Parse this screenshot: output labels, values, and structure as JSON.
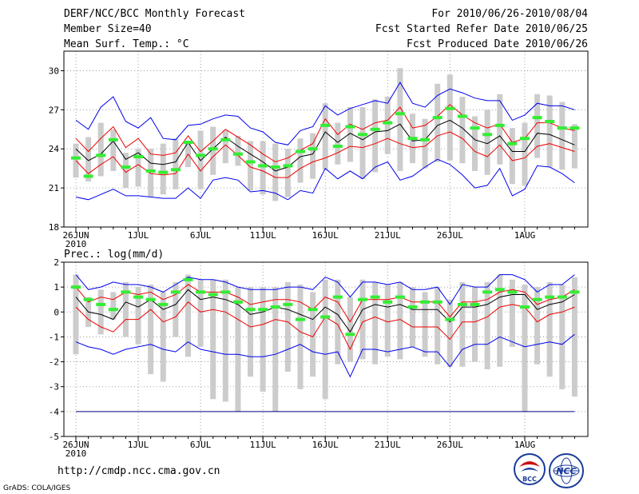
{
  "header": {
    "title": "DERF/NCC/BCC Monthly Forecast",
    "member": "Member Size=40",
    "variable": "Mean Surf. Temp.: °C",
    "period": "For 2010/06/26-2010/08/04",
    "start": "Fcst Started Refer Date 2010/06/25",
    "produced": "Fcst Produced Date 2010/06/26"
  },
  "footer": {
    "url": "http://cmdp.ncc.cma.gov.cn",
    "credit": "GrADS: COLA/IGES",
    "logo_left": "BCC",
    "logo_right": "NCC"
  },
  "chart_data": [
    {
      "type": "line",
      "title": "Mean Surf. Temp.: °C",
      "xlabel": "",
      "ylabel": "",
      "ylim": [
        18,
        31.5
      ],
      "yticks": [
        18,
        21,
        24,
        27,
        30
      ],
      "xticks": [
        {
          "day": 0,
          "label": "26JUN",
          "sub": "2010"
        },
        {
          "day": 5,
          "label": "1JUL"
        },
        {
          "day": 10,
          "label": "6JUL"
        },
        {
          "day": 15,
          "label": "11JUL"
        },
        {
          "day": 20,
          "label": "16JUL"
        },
        {
          "day": 25,
          "label": "21JUL"
        },
        {
          "day": 30,
          "label": "26JUL"
        },
        {
          "day": 36,
          "label": "1AUG"
        }
      ],
      "max": [
        26.2,
        25.5,
        27.2,
        28.0,
        26.1,
        25.6,
        26.4,
        24.8,
        24.7,
        25.8,
        25.9,
        26.3,
        26.6,
        26.5,
        25.6,
        25.3,
        24.5,
        24.3,
        25.4,
        25.7,
        27.3,
        26.6,
        27.1,
        27.4,
        27.7,
        27.5,
        29.1,
        27.5,
        27.2,
        28.1,
        28.6,
        28.3,
        27.9,
        27.7,
        27.7,
        26.2,
        26.6,
        27.5,
        27.3,
        27.3,
        27.0
      ],
      "upper": [
        24.8,
        23.8,
        24.8,
        25.7,
        24.1,
        24.8,
        23.6,
        23.5,
        23.7,
        25.0,
        23.8,
        24.6,
        25.5,
        24.9,
        24.3,
        23.6,
        23.0,
        23.3,
        23.9,
        24.4,
        26.3,
        25.1,
        25.9,
        25.5,
        26.0,
        26.2,
        27.2,
        25.6,
        25.8,
        26.5,
        27.4,
        26.6,
        26.0,
        25.6,
        25.9,
        24.5,
        24.8,
        26.0,
        26.0,
        25.6,
        25.4
      ],
      "mean": [
        24.0,
        23.1,
        23.6,
        24.6,
        23.2,
        23.7,
        22.9,
        22.8,
        23.0,
        24.5,
        23.1,
        24.0,
        24.9,
        24.2,
        23.6,
        23.0,
        22.3,
        22.6,
        23.4,
        23.6,
        25.3,
        24.5,
        25.2,
        24.7,
        25.3,
        25.4,
        25.9,
        24.6,
        24.7,
        25.8,
        26.2,
        25.6,
        24.7,
        24.4,
        25.0,
        23.8,
        23.8,
        25.2,
        25.1,
        24.7,
        24.3
      ],
      "lower": [
        23.1,
        22.1,
        22.8,
        23.4,
        22.2,
        22.8,
        22.1,
        22.0,
        22.1,
        23.6,
        22.3,
        23.4,
        24.3,
        23.5,
        22.6,
        22.3,
        21.8,
        21.8,
        22.5,
        23.0,
        23.3,
        23.7,
        24.2,
        24.1,
        24.4,
        24.8,
        24.4,
        24.1,
        24.2,
        25.0,
        25.3,
        24.8,
        23.8,
        23.4,
        24.3,
        23.1,
        23.3,
        24.2,
        24.4,
        24.1,
        23.8
      ],
      "min": [
        20.3,
        20.1,
        20.5,
        20.9,
        20.4,
        20.4,
        20.3,
        20.2,
        20.2,
        21.0,
        20.2,
        21.6,
        21.8,
        21.6,
        20.7,
        20.8,
        20.6,
        20.1,
        20.8,
        20.6,
        22.5,
        21.7,
        22.3,
        21.7,
        22.6,
        23.0,
        21.6,
        21.9,
        22.6,
        23.2,
        22.8,
        22.0,
        21.0,
        21.2,
        22.5,
        20.4,
        20.9,
        22.7,
        22.6,
        22.1,
        21.4
      ],
      "obs": [
        23.3,
        21.9,
        23.5,
        24.7,
        22.6,
        23.4,
        22.3,
        22.2,
        22.4,
        24.5,
        23.5,
        24.0,
        24.7,
        23.6,
        23.0,
        22.7,
        22.6,
        22.7,
        23.8,
        24.0,
        25.8,
        24.2,
        25.7,
        25.1,
        25.5,
        26.0,
        26.7,
        24.8,
        24.7,
        26.4,
        27.1,
        26.5,
        25.6,
        25.1,
        25.8,
        24.4,
        24.8,
        26.4,
        26.1,
        25.6,
        25.6
      ],
      "box_low": [
        21.8,
        21.5,
        21.9,
        22.3,
        21.0,
        21.1,
        20.3,
        20.5,
        20.9,
        22.6,
        20.9,
        22.0,
        22.9,
        22.7,
        20.8,
        20.5,
        20.0,
        20.3,
        21.4,
        21.7,
        22.4,
        22.8,
        23.0,
        21.7,
        22.2,
        23.6,
        22.3,
        22.9,
        22.5,
        23.0,
        23.1,
        22.9,
        22.3,
        22.0,
        22.8,
        21.3,
        21.2,
        23.3,
        22.6,
        22.4,
        22.5
      ],
      "box_high": [
        24.4,
        24.9,
        26.0,
        25.5,
        23.7,
        24.0,
        24.0,
        24.4,
        24.8,
        24.6,
        25.4,
        25.7,
        25.4,
        25.0,
        24.6,
        24.6,
        24.4,
        24.0,
        24.8,
        25.2,
        27.5,
        26.0,
        27.2,
        27.2,
        27.8,
        28.0,
        30.2,
        26.7,
        26.3,
        29.0,
        29.7,
        28.0,
        26.5,
        27.0,
        28.2,
        25.6,
        26.0,
        28.2,
        28.1,
        27.6,
        25.9
      ],
      "series": [
        {
          "name": "ensemble max/min",
          "color": "#0000ee"
        },
        {
          "name": "spread bounds",
          "color": "#ee0000"
        },
        {
          "name": "ensemble mean",
          "color": "#000000"
        },
        {
          "name": "observation",
          "color": "#33ee33"
        },
        {
          "name": "member range",
          "color": "#cccccc"
        }
      ]
    },
    {
      "type": "line",
      "title": "Prec.: log(mm/d)",
      "xlabel": "",
      "ylabel": "",
      "ylim": [
        -5,
        2
      ],
      "yticks": [
        -5,
        -4,
        -3,
        -2,
        -1,
        0,
        1,
        2
      ],
      "xticks": [
        {
          "day": 0,
          "label": "26JUN",
          "sub": "2010"
        },
        {
          "day": 5,
          "label": "1JUL"
        },
        {
          "day": 10,
          "label": "6JUL"
        },
        {
          "day": 15,
          "label": "11JUL"
        },
        {
          "day": 20,
          "label": "16JUL"
        },
        {
          "day": 25,
          "label": "21JUL"
        },
        {
          "day": 30,
          "label": "26JUL"
        },
        {
          "day": 36,
          "label": "1AUG"
        }
      ],
      "max": [
        1.5,
        0.9,
        1.0,
        1.2,
        1.1,
        1.1,
        1.0,
        0.8,
        1.1,
        1.4,
        1.3,
        1.3,
        1.2,
        1.0,
        0.9,
        0.9,
        0.9,
        1.0,
        1.0,
        0.9,
        1.4,
        1.2,
        0.6,
        1.2,
        1.2,
        1.1,
        1.2,
        0.9,
        0.9,
        1.0,
        0.3,
        1.1,
        1.0,
        1.0,
        1.5,
        1.5,
        1.3,
        0.8,
        1.1,
        1.1,
        1.5
      ],
      "upper": [
        1.0,
        0.4,
        0.6,
        0.5,
        0.8,
        0.7,
        0.8,
        0.5,
        0.7,
        1.1,
        0.8,
        0.8,
        0.8,
        0.6,
        0.3,
        0.4,
        0.5,
        0.5,
        0.4,
        0.1,
        0.6,
        0.4,
        -0.4,
        0.5,
        0.5,
        0.5,
        0.6,
        0.4,
        0.4,
        0.4,
        -0.2,
        0.4,
        0.4,
        0.5,
        0.8,
        0.9,
        0.8,
        0.3,
        0.5,
        0.6,
        0.9
      ],
      "mean": [
        0.6,
        0.0,
        -0.1,
        -0.3,
        0.4,
        0.2,
        0.5,
        0.1,
        0.3,
        0.9,
        0.5,
        0.6,
        0.5,
        0.3,
        -0.1,
        0.0,
        0.2,
        0.1,
        -0.1,
        -0.3,
        0.2,
        -0.1,
        -0.8,
        0.1,
        0.3,
        0.2,
        0.3,
        0.1,
        0.1,
        0.1,
        -0.4,
        0.2,
        0.2,
        0.3,
        0.6,
        0.7,
        0.7,
        0.1,
        0.3,
        0.4,
        0.7
      ],
      "lower": [
        0.2,
        -0.3,
        -0.6,
        -0.8,
        -0.3,
        -0.3,
        0.1,
        -0.4,
        -0.2,
        0.4,
        0.0,
        0.1,
        0.0,
        -0.3,
        -0.6,
        -0.5,
        -0.3,
        -0.4,
        -0.8,
        -1.0,
        -0.2,
        -0.5,
        -1.5,
        -0.4,
        -0.2,
        -0.4,
        -0.3,
        -0.6,
        -0.6,
        -0.6,
        -1.1,
        -0.4,
        -0.4,
        -0.2,
        0.2,
        0.3,
        0.2,
        -0.4,
        -0.1,
        0.0,
        0.2
      ],
      "min": [
        -1.2,
        -1.4,
        -1.5,
        -1.7,
        -1.5,
        -1.4,
        -1.3,
        -1.5,
        -1.6,
        -1.2,
        -1.5,
        -1.6,
        -1.7,
        -1.7,
        -1.8,
        -1.8,
        -1.7,
        -1.5,
        -1.3,
        -1.6,
        -1.7,
        -1.6,
        -2.6,
        -1.5,
        -1.5,
        -1.6,
        -1.5,
        -1.4,
        -1.6,
        -1.6,
        -2.2,
        -1.5,
        -1.3,
        -1.3,
        -1.0,
        -1.2,
        -1.4,
        -1.3,
        -1.2,
        -1.3,
        -0.9
      ],
      "obs": [
        1.0,
        0.5,
        0.3,
        0.1,
        0.8,
        0.6,
        0.5,
        0.3,
        0.8,
        1.3,
        0.8,
        0.7,
        0.8,
        0.4,
        0.1,
        0.1,
        0.2,
        0.3,
        -0.3,
        0.1,
        -0.2,
        0.6,
        -0.9,
        0.5,
        0.6,
        0.4,
        0.6,
        0.2,
        0.4,
        0.4,
        -0.3,
        0.3,
        0.3,
        0.8,
        0.9,
        0.8,
        0.2,
        0.5,
        0.6,
        0.6,
        0.8
      ],
      "box_low": [
        -1.7,
        -0.6,
        -0.9,
        -0.3,
        -1.0,
        -1.3,
        -2.5,
        -2.8,
        -1.0,
        -1.8,
        -1.4,
        -3.5,
        -3.6,
        -4.0,
        -2.6,
        -3.2,
        -4.0,
        -2.4,
        -3.1,
        -2.6,
        -3.5,
        -2.1,
        -2.0,
        -1.9,
        -2.1,
        -1.8,
        -1.9,
        -1.4,
        -1.8,
        -2.1,
        -2.2,
        -2.2,
        -2.0,
        -2.3,
        -2.2,
        -1.4,
        -4.0,
        -2.1,
        -2.6,
        -3.1,
        -3.4
      ],
      "box_high": [
        1.5,
        0.6,
        0.9,
        0.8,
        1.2,
        1.0,
        1.1,
        0.8,
        1.2,
        1.5,
        1.3,
        1.3,
        1.3,
        1.0,
        1.0,
        1.0,
        1.0,
        1.2,
        1.1,
        0.8,
        1.3,
        1.3,
        0.6,
        1.3,
        1.2,
        1.1,
        1.2,
        1.0,
        0.8,
        1.0,
        0.5,
        1.2,
        1.0,
        1.2,
        1.5,
        1.3,
        1.1,
        1.0,
        1.2,
        1.1,
        1.4
      ],
      "reference_line": -4,
      "series": [
        {
          "name": "ensemble max/min",
          "color": "#0000ee"
        },
        {
          "name": "spread bounds",
          "color": "#ee0000"
        },
        {
          "name": "ensemble mean",
          "color": "#000000"
        },
        {
          "name": "observation",
          "color": "#33ee33"
        },
        {
          "name": "member range",
          "color": "#cccccc"
        },
        {
          "name": "lower limit",
          "color": "#000088"
        }
      ]
    }
  ]
}
